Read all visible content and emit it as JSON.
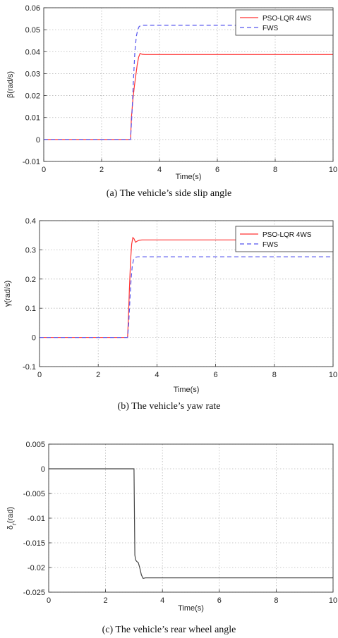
{
  "chart_data": [
    {
      "type": "line",
      "caption": "(a) The vehicle’s side slip angle",
      "xlabel": "Time(s)",
      "ylabel": "β(rad/s)",
      "xlim": [
        0,
        10
      ],
      "ylim": [
        -0.01,
        0.06
      ],
      "xticks": [
        "0",
        "2",
        "4",
        "6",
        "8",
        "10"
      ],
      "yticks": [
        "-0.01",
        "0",
        "0.01",
        "0.02",
        "0.03",
        "0.04",
        "0.05",
        "0.06"
      ],
      "grid": true,
      "legend_position": "top-right",
      "series": [
        {
          "name": "PSO-LQR 4WS",
          "color": "#ff3333",
          "style": "solid",
          "x": [
            0,
            3.0,
            3.03,
            3.08,
            3.13,
            3.18,
            3.23,
            3.28,
            3.33,
            3.4,
            3.5,
            10
          ],
          "y": [
            0,
            0,
            0.01,
            0.018,
            0.024,
            0.029,
            0.034,
            0.0375,
            0.0392,
            0.0388,
            0.0387,
            0.0387
          ]
        },
        {
          "name": "FWS",
          "color": "#5555ee",
          "style": "dashed",
          "x": [
            0,
            3.0,
            3.05,
            3.1,
            3.15,
            3.2,
            3.25,
            3.3,
            3.4,
            10
          ],
          "y": [
            0,
            0,
            0.012,
            0.027,
            0.04,
            0.047,
            0.05,
            0.0515,
            0.052,
            0.052
          ]
        }
      ]
    },
    {
      "type": "line",
      "caption": "(b) The vehicle’s yaw rate",
      "xlabel": "Time(s)",
      "ylabel": "γ(rad/s)",
      "xlim": [
        0,
        10
      ],
      "ylim": [
        -0.1,
        0.4
      ],
      "xticks": [
        "0",
        "2",
        "4",
        "6",
        "8",
        "10"
      ],
      "yticks": [
        "-0.1",
        "0",
        "0.1",
        "0.2",
        "0.3",
        "0.4"
      ],
      "grid": true,
      "legend_position": "top-right",
      "series": [
        {
          "name": "PSO-LQR 4WS",
          "color": "#ff3333",
          "style": "solid",
          "x": [
            0,
            3.0,
            3.03,
            3.06,
            3.1,
            3.14,
            3.18,
            3.22,
            3.27,
            3.33,
            3.4,
            3.5,
            10
          ],
          "y": [
            0,
            0,
            0.07,
            0.16,
            0.26,
            0.32,
            0.342,
            0.338,
            0.326,
            0.33,
            0.333,
            0.334,
            0.334
          ]
        },
        {
          "name": "FWS",
          "color": "#5555ee",
          "style": "dashed",
          "x": [
            0,
            3.0,
            3.04,
            3.08,
            3.12,
            3.16,
            3.2,
            3.25,
            3.35,
            10
          ],
          "y": [
            0,
            0,
            0.05,
            0.13,
            0.2,
            0.245,
            0.265,
            0.274,
            0.276,
            0.276
          ]
        }
      ]
    },
    {
      "type": "line",
      "caption": "(c) The vehicle’s rear wheel angle",
      "xlabel": "Time(s)",
      "ylabel": "δr(rad)",
      "ylabel_main": "δ",
      "ylabel_sub": "r",
      "ylabel_unit": "(rad)",
      "xlim": [
        0,
        10
      ],
      "ylim": [
        -0.025,
        0.005
      ],
      "xticks": [
        "0",
        "2",
        "4",
        "6",
        "8",
        "10"
      ],
      "yticks": [
        "-0.025",
        "-0.02",
        "-0.015",
        "-0.01",
        "-0.005",
        "0",
        "0.005"
      ],
      "grid": true,
      "series": [
        {
          "color": "#444444",
          "style": "solid",
          "x": [
            0,
            3.0,
            3.01,
            3.03,
            3.06,
            3.1,
            3.15,
            3.2,
            3.26,
            3.32,
            3.4,
            3.5,
            10
          ],
          "y": [
            0,
            0,
            -0.006,
            -0.0175,
            -0.0185,
            -0.0188,
            -0.019,
            -0.02,
            -0.0215,
            -0.0222,
            -0.0221,
            -0.0221,
            -0.0221
          ]
        }
      ]
    }
  ]
}
